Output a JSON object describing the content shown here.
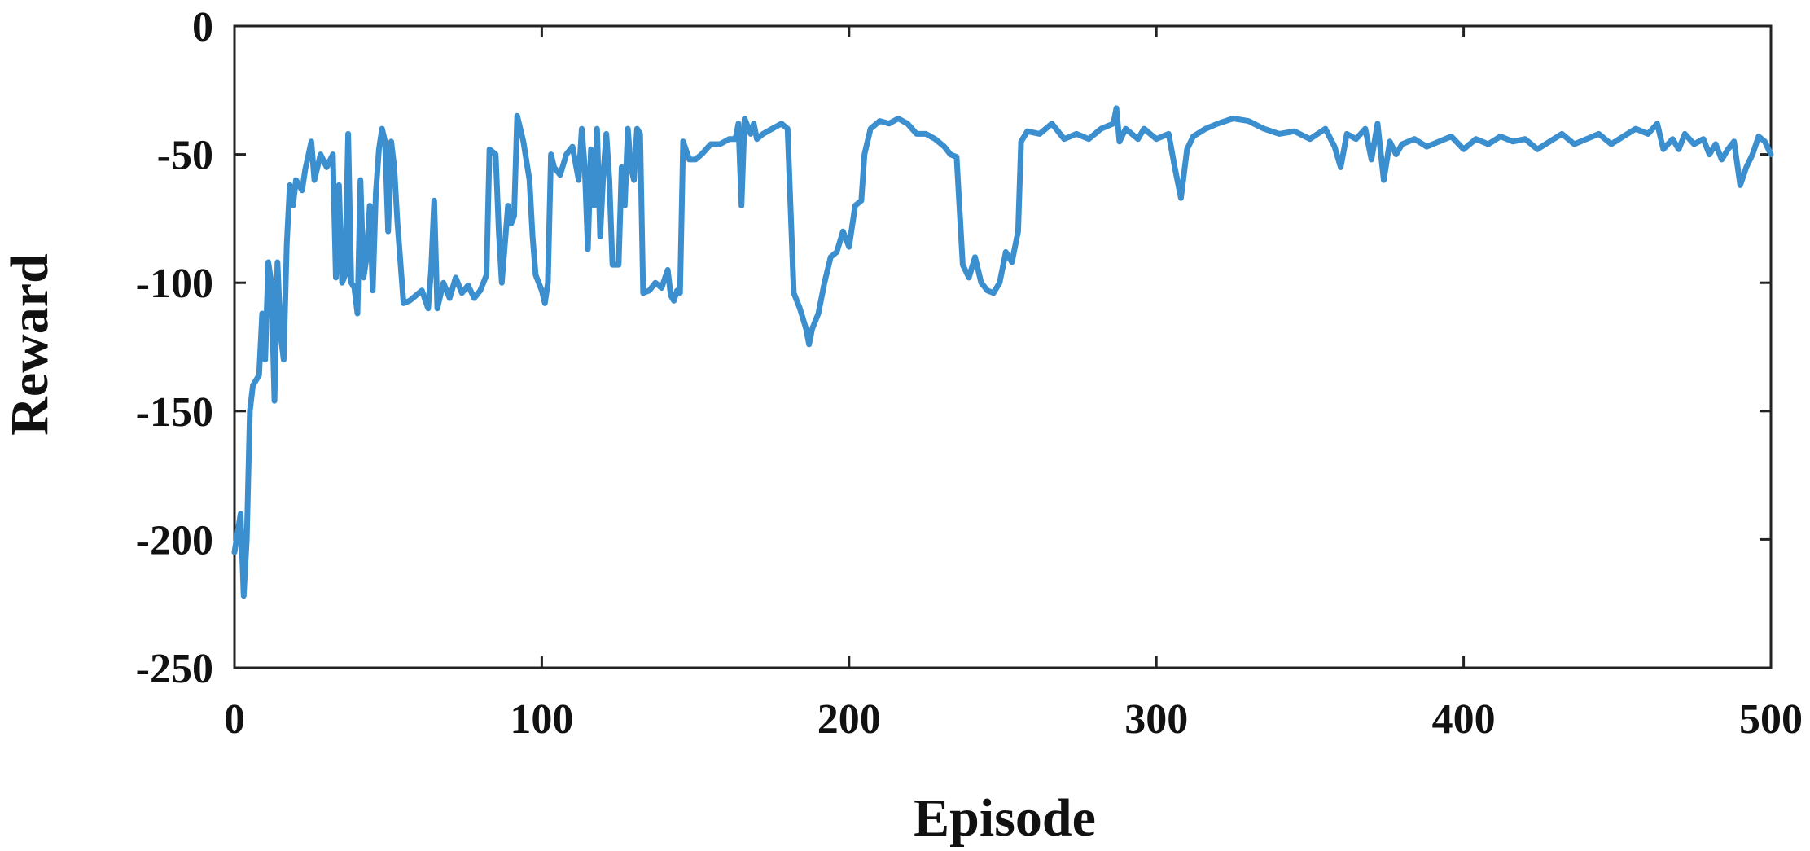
{
  "chart_data": {
    "type": "line",
    "title": "",
    "xlabel": "Episode",
    "ylabel": "Reward",
    "xlim": [
      0,
      500
    ],
    "ylim": [
      -250,
      0
    ],
    "xticks": [
      0,
      100,
      200,
      300,
      400,
      500
    ],
    "yticks": [
      0,
      -50,
      -100,
      -150,
      -200,
      -250
    ],
    "xtick_labels": [
      "0",
      "100",
      "200",
      "300",
      "400",
      "500"
    ],
    "ytick_labels": [
      "0",
      "-50",
      "-100",
      "-150",
      "-200",
      "-250"
    ],
    "grid": false,
    "legend": "none",
    "line_color": "#3b8fcf",
    "series": [
      {
        "points": [
          [
            0,
            -205
          ],
          [
            2,
            -190
          ],
          [
            3,
            -222
          ],
          [
            4,
            -200
          ],
          [
            5,
            -150
          ],
          [
            6,
            -140
          ],
          [
            8,
            -136
          ],
          [
            9,
            -112
          ],
          [
            10,
            -130
          ],
          [
            11,
            -92
          ],
          [
            12,
            -100
          ],
          [
            13,
            -146
          ],
          [
            14,
            -92
          ],
          [
            15,
            -120
          ],
          [
            16,
            -130
          ],
          [
            17,
            -85
          ],
          [
            18,
            -62
          ],
          [
            19,
            -70
          ],
          [
            20,
            -60
          ],
          [
            22,
            -64
          ],
          [
            23,
            -56
          ],
          [
            25,
            -45
          ],
          [
            26,
            -60
          ],
          [
            28,
            -50
          ],
          [
            30,
            -55
          ],
          [
            32,
            -50
          ],
          [
            33,
            -98
          ],
          [
            34,
            -62
          ],
          [
            35,
            -100
          ],
          [
            36,
            -97
          ],
          [
            37,
            -42
          ],
          [
            38,
            -100
          ],
          [
            39,
            -102
          ],
          [
            40,
            -112
          ],
          [
            41,
            -60
          ],
          [
            42,
            -98
          ],
          [
            43,
            -90
          ],
          [
            44,
            -70
          ],
          [
            45,
            -103
          ],
          [
            46,
            -65
          ],
          [
            47,
            -48
          ],
          [
            48,
            -40
          ],
          [
            49,
            -45
          ],
          [
            50,
            -80
          ],
          [
            51,
            -45
          ],
          [
            52,
            -55
          ],
          [
            53,
            -76
          ],
          [
            55,
            -108
          ],
          [
            57,
            -107
          ],
          [
            59,
            -105
          ],
          [
            61,
            -103
          ],
          [
            63,
            -110
          ],
          [
            64,
            -95
          ],
          [
            65,
            -68
          ],
          [
            66,
            -110
          ],
          [
            68,
            -100
          ],
          [
            70,
            -106
          ],
          [
            72,
            -98
          ],
          [
            74,
            -104
          ],
          [
            76,
            -101
          ],
          [
            78,
            -106
          ],
          [
            80,
            -103
          ],
          [
            82,
            -97
          ],
          [
            83,
            -48
          ],
          [
            85,
            -50
          ],
          [
            86,
            -80
          ],
          [
            87,
            -100
          ],
          [
            88,
            -85
          ],
          [
            89,
            -70
          ],
          [
            90,
            -77
          ],
          [
            91,
            -74
          ],
          [
            92,
            -35
          ],
          [
            94,
            -45
          ],
          [
            96,
            -60
          ],
          [
            97,
            -82
          ],
          [
            98,
            -97
          ],
          [
            100,
            -103
          ],
          [
            101,
            -108
          ],
          [
            102,
            -100
          ],
          [
            103,
            -50
          ],
          [
            104,
            -55
          ],
          [
            106,
            -58
          ],
          [
            108,
            -50
          ],
          [
            110,
            -47
          ],
          [
            112,
            -60
          ],
          [
            113,
            -40
          ],
          [
            114,
            -55
          ],
          [
            115,
            -87
          ],
          [
            116,
            -48
          ],
          [
            117,
            -70
          ],
          [
            118,
            -40
          ],
          [
            119,
            -82
          ],
          [
            120,
            -58
          ],
          [
            121,
            -42
          ],
          [
            122,
            -60
          ],
          [
            123,
            -93
          ],
          [
            125,
            -93
          ],
          [
            126,
            -55
          ],
          [
            127,
            -70
          ],
          [
            128,
            -40
          ],
          [
            129,
            -55
          ],
          [
            130,
            -60
          ],
          [
            131,
            -40
          ],
          [
            132,
            -42
          ],
          [
            133,
            -104
          ],
          [
            135,
            -103
          ],
          [
            137,
            -100
          ],
          [
            139,
            -102
          ],
          [
            141,
            -95
          ],
          [
            142,
            -105
          ],
          [
            143,
            -107
          ],
          [
            144,
            -103
          ],
          [
            145,
            -104
          ],
          [
            146,
            -45
          ],
          [
            148,
            -52
          ],
          [
            150,
            -52
          ],
          [
            152,
            -50
          ],
          [
            155,
            -46
          ],
          [
            158,
            -46
          ],
          [
            161,
            -44
          ],
          [
            163,
            -44
          ],
          [
            164,
            -38
          ],
          [
            165,
            -70
          ],
          [
            166,
            -36
          ],
          [
            168,
            -42
          ],
          [
            169,
            -38
          ],
          [
            170,
            -44
          ],
          [
            172,
            -42
          ],
          [
            175,
            -40
          ],
          [
            178,
            -38
          ],
          [
            180,
            -40
          ],
          [
            182,
            -104
          ],
          [
            184,
            -110
          ],
          [
            186,
            -118
          ],
          [
            187,
            -124
          ],
          [
            188,
            -118
          ],
          [
            190,
            -112
          ],
          [
            192,
            -100
          ],
          [
            194,
            -90
          ],
          [
            196,
            -88
          ],
          [
            198,
            -80
          ],
          [
            200,
            -86
          ],
          [
            202,
            -70
          ],
          [
            204,
            -68
          ],
          [
            205,
            -50
          ],
          [
            207,
            -40
          ],
          [
            210,
            -37
          ],
          [
            213,
            -38
          ],
          [
            216,
            -36
          ],
          [
            219,
            -38
          ],
          [
            222,
            -42
          ],
          [
            225,
            -42
          ],
          [
            228,
            -44
          ],
          [
            231,
            -47
          ],
          [
            233,
            -50
          ],
          [
            235,
            -51
          ],
          [
            237,
            -93
          ],
          [
            239,
            -98
          ],
          [
            241,
            -90
          ],
          [
            243,
            -100
          ],
          [
            245,
            -103
          ],
          [
            247,
            -104
          ],
          [
            249,
            -100
          ],
          [
            251,
            -88
          ],
          [
            253,
            -92
          ],
          [
            255,
            -80
          ],
          [
            256,
            -45
          ],
          [
            258,
            -41
          ],
          [
            262,
            -42
          ],
          [
            266,
            -38
          ],
          [
            270,
            -44
          ],
          [
            274,
            -42
          ],
          [
            278,
            -44
          ],
          [
            282,
            -40
          ],
          [
            286,
            -38
          ],
          [
            287,
            -32
          ],
          [
            288,
            -45
          ],
          [
            290,
            -40
          ],
          [
            294,
            -44
          ],
          [
            296,
            -40
          ],
          [
            300,
            -44
          ],
          [
            304,
            -42
          ],
          [
            306,
            -55
          ],
          [
            308,
            -67
          ],
          [
            310,
            -48
          ],
          [
            312,
            -43
          ],
          [
            316,
            -40
          ],
          [
            320,
            -38
          ],
          [
            325,
            -36
          ],
          [
            330,
            -37
          ],
          [
            335,
            -40
          ],
          [
            340,
            -42
          ],
          [
            345,
            -41
          ],
          [
            350,
            -44
          ],
          [
            355,
            -40
          ],
          [
            358,
            -47
          ],
          [
            360,
            -55
          ],
          [
            362,
            -42
          ],
          [
            365,
            -44
          ],
          [
            368,
            -40
          ],
          [
            370,
            -52
          ],
          [
            372,
            -38
          ],
          [
            374,
            -60
          ],
          [
            376,
            -45
          ],
          [
            378,
            -50
          ],
          [
            380,
            -46
          ],
          [
            384,
            -44
          ],
          [
            388,
            -47
          ],
          [
            392,
            -45
          ],
          [
            396,
            -43
          ],
          [
            400,
            -48
          ],
          [
            404,
            -44
          ],
          [
            408,
            -46
          ],
          [
            412,
            -43
          ],
          [
            416,
            -45
          ],
          [
            420,
            -44
          ],
          [
            424,
            -48
          ],
          [
            428,
            -45
          ],
          [
            432,
            -42
          ],
          [
            436,
            -46
          ],
          [
            440,
            -44
          ],
          [
            444,
            -42
          ],
          [
            448,
            -46
          ],
          [
            452,
            -43
          ],
          [
            456,
            -40
          ],
          [
            460,
            -42
          ],
          [
            463,
            -38
          ],
          [
            465,
            -48
          ],
          [
            468,
            -44
          ],
          [
            470,
            -48
          ],
          [
            472,
            -42
          ],
          [
            475,
            -46
          ],
          [
            478,
            -44
          ],
          [
            480,
            -50
          ],
          [
            482,
            -46
          ],
          [
            484,
            -52
          ],
          [
            486,
            -48
          ],
          [
            488,
            -45
          ],
          [
            490,
            -62
          ],
          [
            492,
            -55
          ],
          [
            494,
            -50
          ],
          [
            496,
            -43
          ],
          [
            498,
            -45
          ],
          [
            500,
            -50
          ]
        ]
      }
    ]
  }
}
